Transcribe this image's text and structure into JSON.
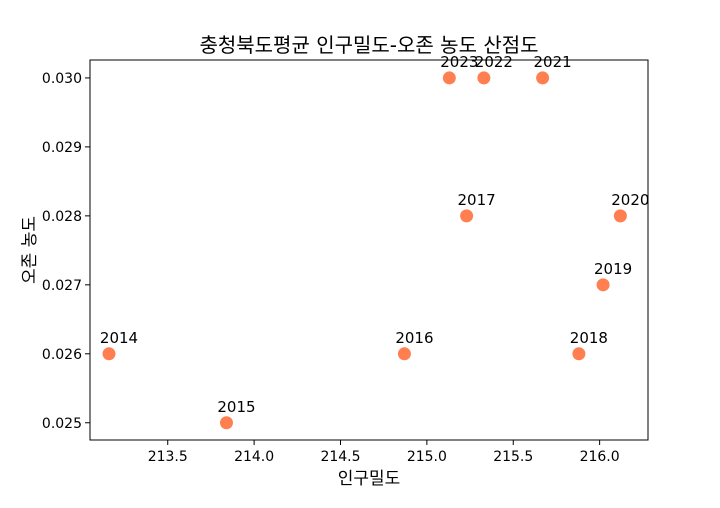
{
  "chart_data": {
    "type": "scatter",
    "title": "충청북도평균 인구밀도-오존 농도 산점도",
    "xlabel": "인구밀도",
    "ylabel": "오존 농도",
    "xlim": [
      213.05,
      216.28
    ],
    "ylim": [
      0.02475,
      0.03026
    ],
    "x_ticks": [
      213.5,
      214.0,
      214.5,
      215.0,
      215.5,
      216.0
    ],
    "x_tick_labels": [
      "213.5",
      "214.0",
      "214.5",
      "215.0",
      "215.5",
      "216.0"
    ],
    "y_ticks": [
      0.025,
      0.026,
      0.027,
      0.028,
      0.029,
      0.03
    ],
    "y_tick_labels": [
      "0.025",
      "0.026",
      "0.027",
      "0.028",
      "0.029",
      "0.030"
    ],
    "grid": false,
    "marker_color": "#ff7f50",
    "points": [
      {
        "label": "2014",
        "x": 213.16,
        "y": 0.026
      },
      {
        "label": "2015",
        "x": 213.84,
        "y": 0.025
      },
      {
        "label": "2016",
        "x": 214.87,
        "y": 0.026
      },
      {
        "label": "2017",
        "x": 215.23,
        "y": 0.028
      },
      {
        "label": "2018",
        "x": 215.88,
        "y": 0.026
      },
      {
        "label": "2019",
        "x": 216.02,
        "y": 0.027
      },
      {
        "label": "2020",
        "x": 216.12,
        "y": 0.028
      },
      {
        "label": "2021",
        "x": 215.67,
        "y": 0.03
      },
      {
        "label": "2022",
        "x": 215.33,
        "y": 0.03
      },
      {
        "label": "2023",
        "x": 215.13,
        "y": 0.03
      }
    ]
  }
}
